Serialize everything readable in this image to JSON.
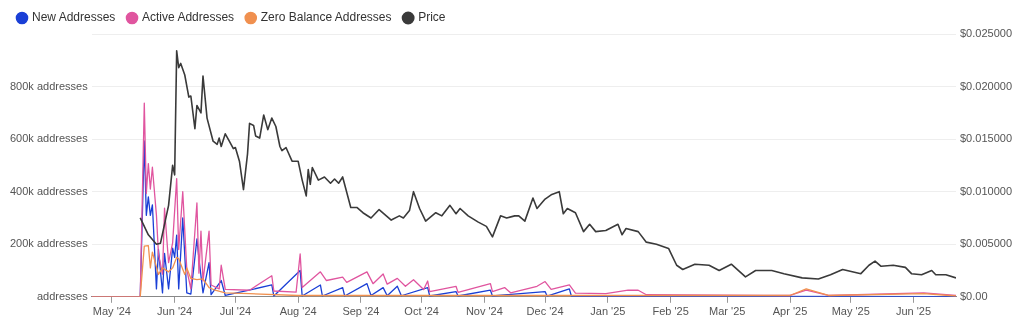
{
  "chart_data": {
    "type": "line",
    "legend": "top left",
    "grid": "y",
    "marker": "none",
    "line_style": "solid",
    "xlim": [
      "2024-04-21",
      "2025-06-22"
    ],
    "xticks": [
      {
        "value": "2024-05-01",
        "label": "May '24"
      },
      {
        "value": "2024-06-01",
        "label": "Jun '24"
      },
      {
        "value": "2024-07-01",
        "label": "Jul '24"
      },
      {
        "value": "2024-08-01",
        "label": "Aug '24"
      },
      {
        "value": "2024-09-01",
        "label": "Sep '24"
      },
      {
        "value": "2024-10-01",
        "label": "Oct '24"
      },
      {
        "value": "2024-11-01",
        "label": "Nov '24"
      },
      {
        "value": "2024-12-01",
        "label": "Dec '24"
      },
      {
        "value": "2025-01-01",
        "label": "Jan '25"
      },
      {
        "value": "2025-02-01",
        "label": "Feb '25"
      },
      {
        "value": "2025-03-01",
        "label": "Mar '25"
      },
      {
        "value": "2025-04-01",
        "label": "Apr '25"
      },
      {
        "value": "2025-05-01",
        "label": "May '25"
      },
      {
        "value": "2025-06-01",
        "label": "Jun '25"
      }
    ],
    "ylim": [
      0,
      1000000
    ],
    "yticks": [
      {
        "value": 0,
        "label": "addresses"
      },
      {
        "value": 200000,
        "label": "200k addresses"
      },
      {
        "value": 400000,
        "label": "400k addresses"
      },
      {
        "value": 600000,
        "label": "600k addresses"
      },
      {
        "value": 800000,
        "label": "800k addresses"
      },
      {
        "value": 1000000,
        "label": null
      }
    ],
    "y2lim": [
      0,
      0.025
    ],
    "y2ticks": [
      {
        "value": 0,
        "label": "$0.00"
      },
      {
        "value": 0.005,
        "label": "$0.005000"
      },
      {
        "value": 0.01,
        "label": "$0.010000"
      },
      {
        "value": 0.015,
        "label": "$0.015000"
      },
      {
        "value": 0.02,
        "label": "$0.020000"
      },
      {
        "value": 0.025,
        "label": "$0.025000"
      }
    ],
    "series": [
      {
        "name": "New Addresses",
        "color": "#1a3fd6",
        "x": [
          "2024-04-21",
          "2024-05-15",
          "2024-05-17",
          "2024-05-18",
          "2024-05-19",
          "2024-05-20",
          "2024-05-21",
          "2024-05-23",
          "2024-05-24",
          "2024-05-26",
          "2024-05-27",
          "2024-05-29",
          "2024-05-31",
          "2024-06-01",
          "2024-06-02",
          "2024-06-03",
          "2024-06-05",
          "2024-06-07",
          "2024-06-09",
          "2024-06-12",
          "2024-06-13",
          "2024-06-15",
          "2024-06-18",
          "2024-06-19",
          "2024-06-24",
          "2024-06-26",
          "2024-07-19",
          "2024-07-20",
          "2024-08-02",
          "2024-08-03",
          "2024-08-12",
          "2024-08-13",
          "2024-08-23",
          "2024-08-24",
          "2024-09-04",
          "2024-09-06",
          "2024-09-12",
          "2024-09-14",
          "2024-09-19",
          "2024-09-21",
          "2024-10-04",
          "2024-10-05",
          "2024-10-18",
          "2024-10-19",
          "2024-11-04",
          "2024-11-05",
          "2024-12-01",
          "2024-12-02",
          "2024-12-13",
          "2024-12-14",
          "2025-06-22"
        ],
        "values": [
          0,
          0,
          593000,
          310000,
          380000,
          310000,
          350000,
          30000,
          180000,
          15000,
          165000,
          30000,
          185000,
          150000,
          235000,
          30000,
          300000,
          15000,
          10000,
          220000,
          145000,
          15000,
          130000,
          8000,
          62000,
          5000,
          45000,
          3000,
          100000,
          3000,
          45000,
          3000,
          35000,
          3000,
          50000,
          5000,
          35000,
          4000,
          40000,
          4000,
          35000,
          3000,
          20000,
          3000,
          25000,
          3000,
          20000,
          3000,
          30000,
          2000,
          1000
        ]
      },
      {
        "name": "Active Addresses",
        "color": "#e0559f",
        "x": [
          "2024-04-21",
          "2024-05-15",
          "2024-05-17",
          "2024-05-18",
          "2024-05-19",
          "2024-05-20",
          "2024-05-21",
          "2024-05-23",
          "2024-05-24",
          "2024-05-26",
          "2024-05-27",
          "2024-05-29",
          "2024-05-31",
          "2024-06-02",
          "2024-06-03",
          "2024-06-05",
          "2024-06-07",
          "2024-06-09",
          "2024-06-12",
          "2024-06-13",
          "2024-06-14",
          "2024-06-15",
          "2024-06-18",
          "2024-06-19",
          "2024-06-23",
          "2024-06-24",
          "2024-06-26",
          "2024-07-08",
          "2024-07-19",
          "2024-07-20",
          "2024-07-31",
          "2024-08-02",
          "2024-08-03",
          "2024-08-12",
          "2024-08-15",
          "2024-08-23",
          "2024-08-25",
          "2024-09-04",
          "2024-09-07",
          "2024-09-12",
          "2024-09-14",
          "2024-09-19",
          "2024-09-23",
          "2024-09-27",
          "2024-10-02",
          "2024-10-04",
          "2024-10-05",
          "2024-10-18",
          "2024-10-19",
          "2024-11-04",
          "2024-11-05",
          "2024-11-11",
          "2024-11-14",
          "2024-11-27",
          "2024-12-01",
          "2024-12-04",
          "2024-12-13",
          "2024-12-16",
          "2024-12-31",
          "2025-01-11",
          "2025-01-16",
          "2025-01-20",
          "2025-04-01",
          "2025-04-09",
          "2025-04-20",
          "2025-06-06",
          "2025-06-22"
        ],
        "values": [
          0,
          0,
          737000,
          393000,
          507000,
          410000,
          493000,
          310000,
          163000,
          86000,
          337000,
          130000,
          205000,
          450000,
          180000,
          400000,
          103000,
          30000,
          357000,
          90000,
          250000,
          60000,
          250000,
          45000,
          30000,
          120000,
          28000,
          25000,
          80000,
          22000,
          18000,
          163000,
          35000,
          95000,
          62000,
          75000,
          55000,
          95000,
          50000,
          87000,
          48000,
          70000,
          40000,
          65000,
          28000,
          60000,
          20000,
          40000,
          17000,
          50000,
          20000,
          35000,
          15000,
          40000,
          58000,
          28000,
          45000,
          14000,
          12000,
          25000,
          25000,
          8000,
          5000,
          25000,
          5000,
          15000,
          5000
        ]
      },
      {
        "name": "Zero Balance Addresses",
        "color": "#f0904f",
        "x": [
          "2024-04-21",
          "2024-05-15",
          "2024-05-17",
          "2024-05-19",
          "2024-05-20",
          "2024-05-21",
          "2024-05-24",
          "2024-05-26",
          "2024-05-29",
          "2024-05-31",
          "2024-06-02",
          "2024-06-03",
          "2024-06-06",
          "2024-06-07",
          "2024-06-09",
          "2024-06-12",
          "2024-06-15",
          "2024-06-18",
          "2024-06-21",
          "2024-06-26",
          "2024-07-08",
          "2024-08-01",
          "2025-04-01",
          "2025-04-09",
          "2025-04-20",
          "2025-06-06",
          "2025-06-22"
        ],
        "values": [
          0,
          0,
          193000,
          195000,
          110000,
          170000,
          85000,
          110000,
          95000,
          110000,
          150000,
          145000,
          85000,
          110000,
          70000,
          65000,
          68000,
          35000,
          25000,
          15000,
          12000,
          5000,
          5000,
          30000,
          5000,
          12000,
          3000
        ]
      },
      {
        "name": "Price",
        "color": "#3a3a3a",
        "axis": "y2",
        "x": [
          "2024-05-15",
          "2024-05-19",
          "2024-05-23",
          "2024-05-25",
          "2024-05-29",
          "2024-05-31",
          "2024-06-01",
          "2024-06-02",
          "2024-06-03",
          "2024-06-04",
          "2024-06-06",
          "2024-06-08",
          "2024-06-09",
          "2024-06-11",
          "2024-06-12",
          "2024-06-14",
          "2024-06-15",
          "2024-06-17",
          "2024-06-20",
          "2024-06-22",
          "2024-06-23",
          "2024-06-24",
          "2024-06-26",
          "2024-06-28",
          "2024-06-30",
          "2024-07-01",
          "2024-07-03",
          "2024-07-05",
          "2024-07-07",
          "2024-07-08",
          "2024-07-10",
          "2024-07-11",
          "2024-07-13",
          "2024-07-15",
          "2024-07-17",
          "2024-07-19",
          "2024-07-21",
          "2024-07-23",
          "2024-07-24",
          "2024-07-26",
          "2024-07-29",
          "2024-08-01",
          "2024-08-03",
          "2024-08-05",
          "2024-08-06",
          "2024-08-07",
          "2024-08-08",
          "2024-08-11",
          "2024-08-14",
          "2024-08-17",
          "2024-08-19",
          "2024-08-21",
          "2024-08-23",
          "2024-08-27",
          "2024-08-30",
          "2024-09-02",
          "2024-09-06",
          "2024-09-10",
          "2024-09-16",
          "2024-09-20",
          "2024-09-22",
          "2024-09-25",
          "2024-09-27",
          "2024-09-30",
          "2024-10-03",
          "2024-10-08",
          "2024-10-11",
          "2024-10-15",
          "2024-10-18",
          "2024-10-20",
          "2024-10-24",
          "2024-10-29",
          "2024-11-02",
          "2024-11-05",
          "2024-11-09",
          "2024-11-12",
          "2024-11-16",
          "2024-11-18",
          "2024-11-21",
          "2024-11-25",
          "2024-11-27",
          "2024-12-01",
          "2024-12-04",
          "2024-12-08",
          "2024-12-10",
          "2024-12-12",
          "2024-12-16",
          "2024-12-20",
          "2024-12-23",
          "2024-12-26",
          "2024-12-31",
          "2025-01-06",
          "2025-01-08",
          "2025-01-10",
          "2025-01-16",
          "2025-01-20",
          "2025-01-25",
          "2025-01-31",
          "2025-02-04",
          "2025-02-07",
          "2025-02-13",
          "2025-02-20",
          "2025-02-25",
          "2025-03-03",
          "2025-03-10",
          "2025-03-15",
          "2025-03-23",
          "2025-03-29",
          "2025-04-07",
          "2025-04-15",
          "2025-04-21",
          "2025-04-27",
          "2025-05-06",
          "2025-05-10",
          "2025-05-13",
          "2025-05-16",
          "2025-05-22",
          "2025-05-28",
          "2025-05-31",
          "2025-06-05",
          "2025-06-10",
          "2025-06-12",
          "2025-06-17",
          "2025-06-22"
        ],
        "values": [
          0.0075,
          0.0059,
          0.005,
          0.0051,
          0.0087,
          0.0125,
          0.0116,
          0.0234,
          0.0218,
          0.0222,
          0.0211,
          0.019,
          0.0191,
          0.016,
          0.0182,
          0.0175,
          0.021,
          0.017,
          0.0148,
          0.0145,
          0.0151,
          0.0143,
          0.0155,
          0.0148,
          0.0141,
          0.0142,
          0.0129,
          0.0102,
          0.0136,
          0.0165,
          0.0163,
          0.0153,
          0.0151,
          0.0173,
          0.0159,
          0.017,
          0.0162,
          0.0143,
          0.0139,
          0.0142,
          0.0129,
          0.0129,
          0.0111,
          0.0096,
          0.0121,
          0.0107,
          0.0123,
          0.0111,
          0.0114,
          0.0108,
          0.0112,
          0.0108,
          0.0114,
          0.0085,
          0.0085,
          0.008,
          0.0075,
          0.0083,
          0.0073,
          0.0077,
          0.0075,
          0.0082,
          0.01,
          0.0084,
          0.0072,
          0.008,
          0.0077,
          0.0087,
          0.0079,
          0.0084,
          0.0077,
          0.0071,
          0.0067,
          0.0057,
          0.0077,
          0.0075,
          0.0077,
          0.0077,
          0.0072,
          0.0094,
          0.0084,
          0.0093,
          0.0097,
          0.01,
          0.0079,
          0.0084,
          0.008,
          0.0062,
          0.0069,
          0.0062,
          0.0063,
          0.0069,
          0.0059,
          0.0065,
          0.0062,
          0.0052,
          0.005,
          0.0046,
          0.003,
          0.0026,
          0.0031,
          0.003,
          0.0025,
          0.0031,
          0.0019,
          0.0025,
          0.0025,
          0.0022,
          0.0018,
          0.0017,
          0.0021,
          0.0026,
          0.0022,
          0.003,
          0.0034,
          0.0029,
          0.003,
          0.0028,
          0.0022,
          0.0021,
          0.0025,
          0.0021,
          0.0021,
          0.0018
        ]
      }
    ]
  }
}
